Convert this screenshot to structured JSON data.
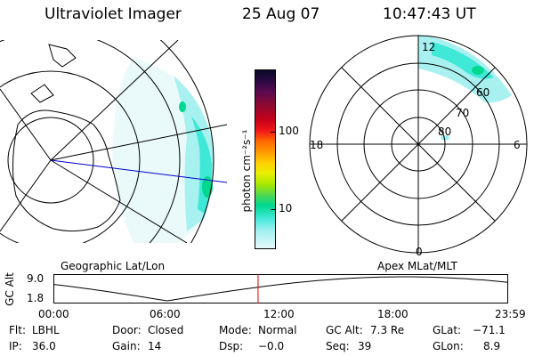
{
  "header": {
    "instrument": "Ultraviolet Imager",
    "date": "25 Aug 07",
    "time": "10:47:43 UT"
  },
  "colorbar": {
    "unit_label": "photon cm⁻²s⁻¹",
    "ticks": [
      "100",
      "10"
    ],
    "colors": [
      "#0a0a28",
      "#2a0a40",
      "#5a0a50",
      "#900a30",
      "#c8001a",
      "#f01818",
      "#ff6a00",
      "#ff9a00",
      "#ffd000",
      "#e8f000",
      "#a8e800",
      "#50d850",
      "#00d890",
      "#40e8d8",
      "#a0f0f0",
      "#e8fafa"
    ]
  },
  "left_map": {
    "caption": "Geographic Lat/Lon"
  },
  "right_map": {
    "caption": "Apex MLat/MLT",
    "mlt_labels": {
      "top": "12",
      "left": "18",
      "right": "6",
      "bottom": "0"
    },
    "lat_labels": [
      "60",
      "70",
      "80"
    ]
  },
  "altitude_plot": {
    "ylabel": "GC Alt",
    "y_ticks": [
      "9.0",
      "1.8"
    ],
    "x_ticks": [
      "00:00",
      "06:00",
      "12:00",
      "18:00",
      "23:59"
    ],
    "current_hour": 10.8
  },
  "status": {
    "filter_label": "Flt:",
    "filter_value": "LBHL",
    "door_label": "Door:",
    "door_value": "Closed",
    "mode_label": "Mode:",
    "mode_value": "Normal",
    "gcalt_label": "GC Alt:",
    "gcalt_value": "7.3 Re",
    "glat_label": "GLat:",
    "glat_value": "−71.1",
    "ip_label": "IP:",
    "ip_value": "36.0",
    "gain_label": "Gain:",
    "gain_value": "14",
    "dsp_label": "Dsp:",
    "dsp_value": "−0.0",
    "seq_label": "Seq:",
    "seq_value": "39",
    "glon_label": "GLon:",
    "glon_value": "8.9"
  }
}
